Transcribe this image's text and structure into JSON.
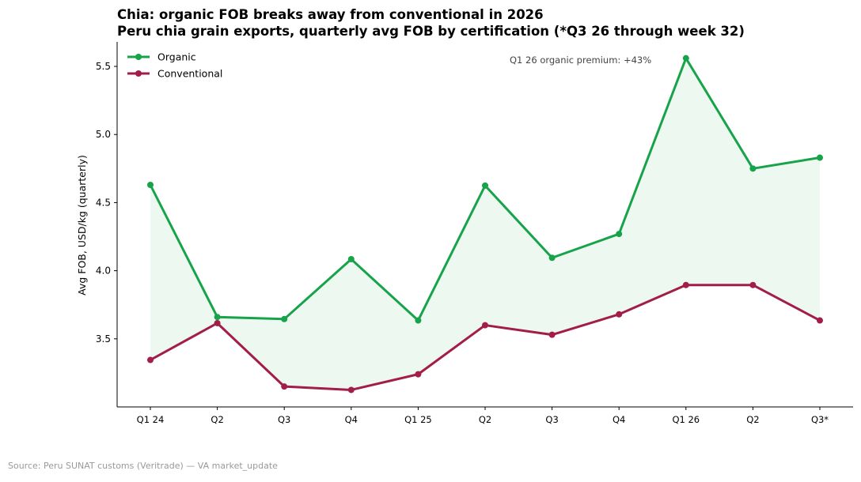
{
  "chart_data": {
    "type": "line",
    "title": "Chia: organic FOB breaks away from conventional in 2026",
    "subtitle": "Peru chia grain exports, quarterly avg FOB by certification (*Q3 26 through week 32)",
    "xlabel": "",
    "ylabel": "Avg FOB, USD/kg (quarterly)",
    "categories": [
      "Q1 24",
      "Q2",
      "Q3",
      "Q4",
      "Q1 25",
      "Q2",
      "Q3",
      "Q4",
      "Q1 26",
      "Q2",
      "Q3*"
    ],
    "ylim": [
      3.0,
      5.68
    ],
    "yticks": [
      3.5,
      4.0,
      4.5,
      5.0,
      5.5
    ],
    "series": [
      {
        "name": "Organic",
        "color": "#17a34a",
        "values": [
          4.63,
          3.66,
          3.645,
          4.085,
          3.635,
          4.625,
          4.095,
          4.27,
          5.56,
          4.75,
          4.83
        ]
      },
      {
        "name": "Conventional",
        "color": "#a21d48",
        "values": [
          3.345,
          3.615,
          3.15,
          3.125,
          3.24,
          3.6,
          3.53,
          3.68,
          3.895,
          3.895,
          3.635
        ]
      }
    ],
    "fill_between": {
      "color": "#17a34a",
      "opacity": 0.08
    },
    "legend": {
      "position": "top-left"
    },
    "annotation": "Q1 26 organic premium: +43%",
    "source": "Source: Peru SUNAT customs (Veritrade) — VA market_update",
    "grid": false
  }
}
